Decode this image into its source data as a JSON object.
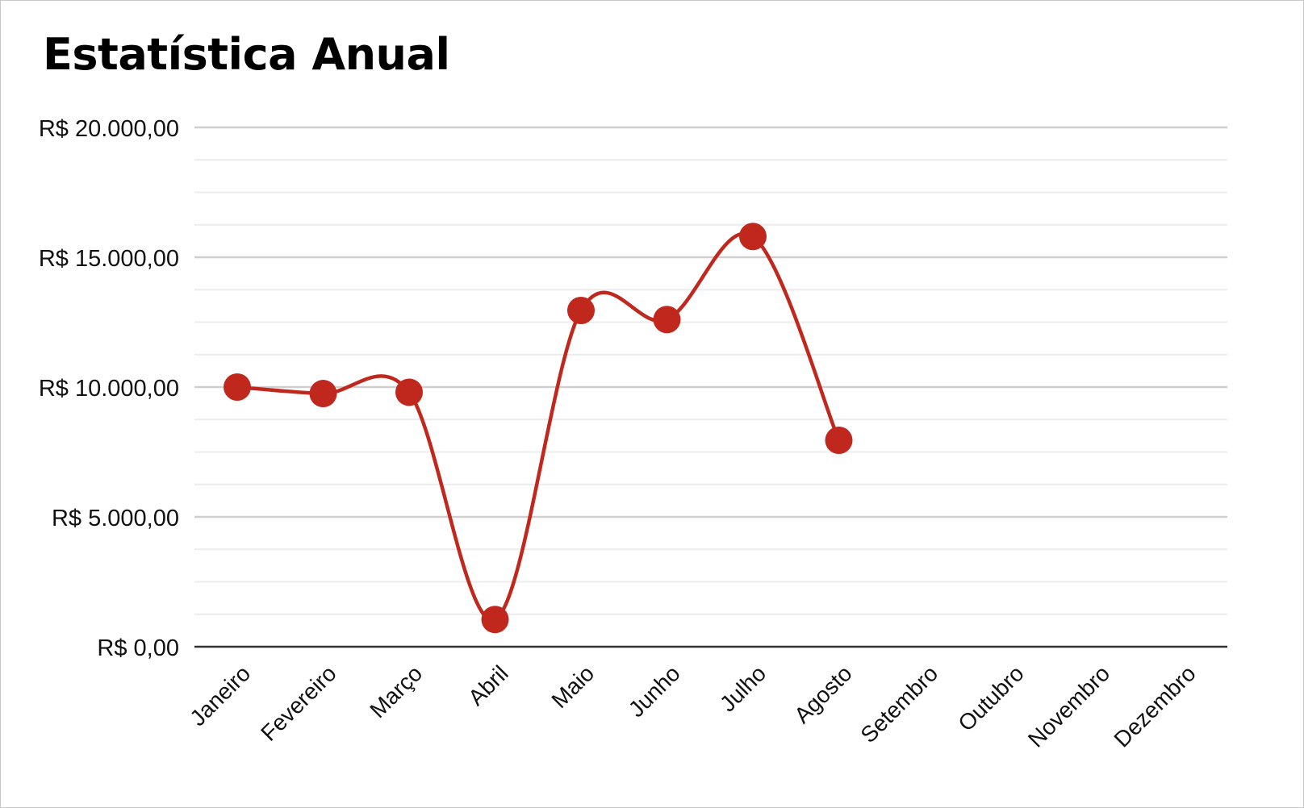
{
  "chart_data": {
    "type": "line",
    "title": "Estatística Anual",
    "categories": [
      "Janeiro",
      "Fevereiro",
      "Março",
      "Abril",
      "Maio",
      "Junho",
      "Julho",
      "Agosto",
      "Setembro",
      "Outubro",
      "Novembro",
      "Dezembro"
    ],
    "series": [
      {
        "values": [
          10000,
          9750,
          9800,
          1050,
          12950,
          12600,
          15800,
          7950,
          null,
          null,
          null,
          null
        ]
      }
    ],
    "ylim": [
      0,
      20000
    ],
    "yticks": [
      0,
      5000,
      10000,
      15000,
      20000
    ],
    "ytick_labels": [
      "R$ 0,00",
      "R$ 5.000,00",
      "R$ 10.000,00",
      "R$ 15.000,00",
      "R$ 20.000,00"
    ],
    "minor_gridlines_per_major": 3,
    "grid": true,
    "smooth": true,
    "line_color": "#c0281e",
    "marker_color": "#c0281e",
    "major_grid_color": "#cfcfcf",
    "minor_grid_color": "#ececec",
    "baseline_color": "#333333",
    "xlabel": "",
    "ylabel": ""
  }
}
